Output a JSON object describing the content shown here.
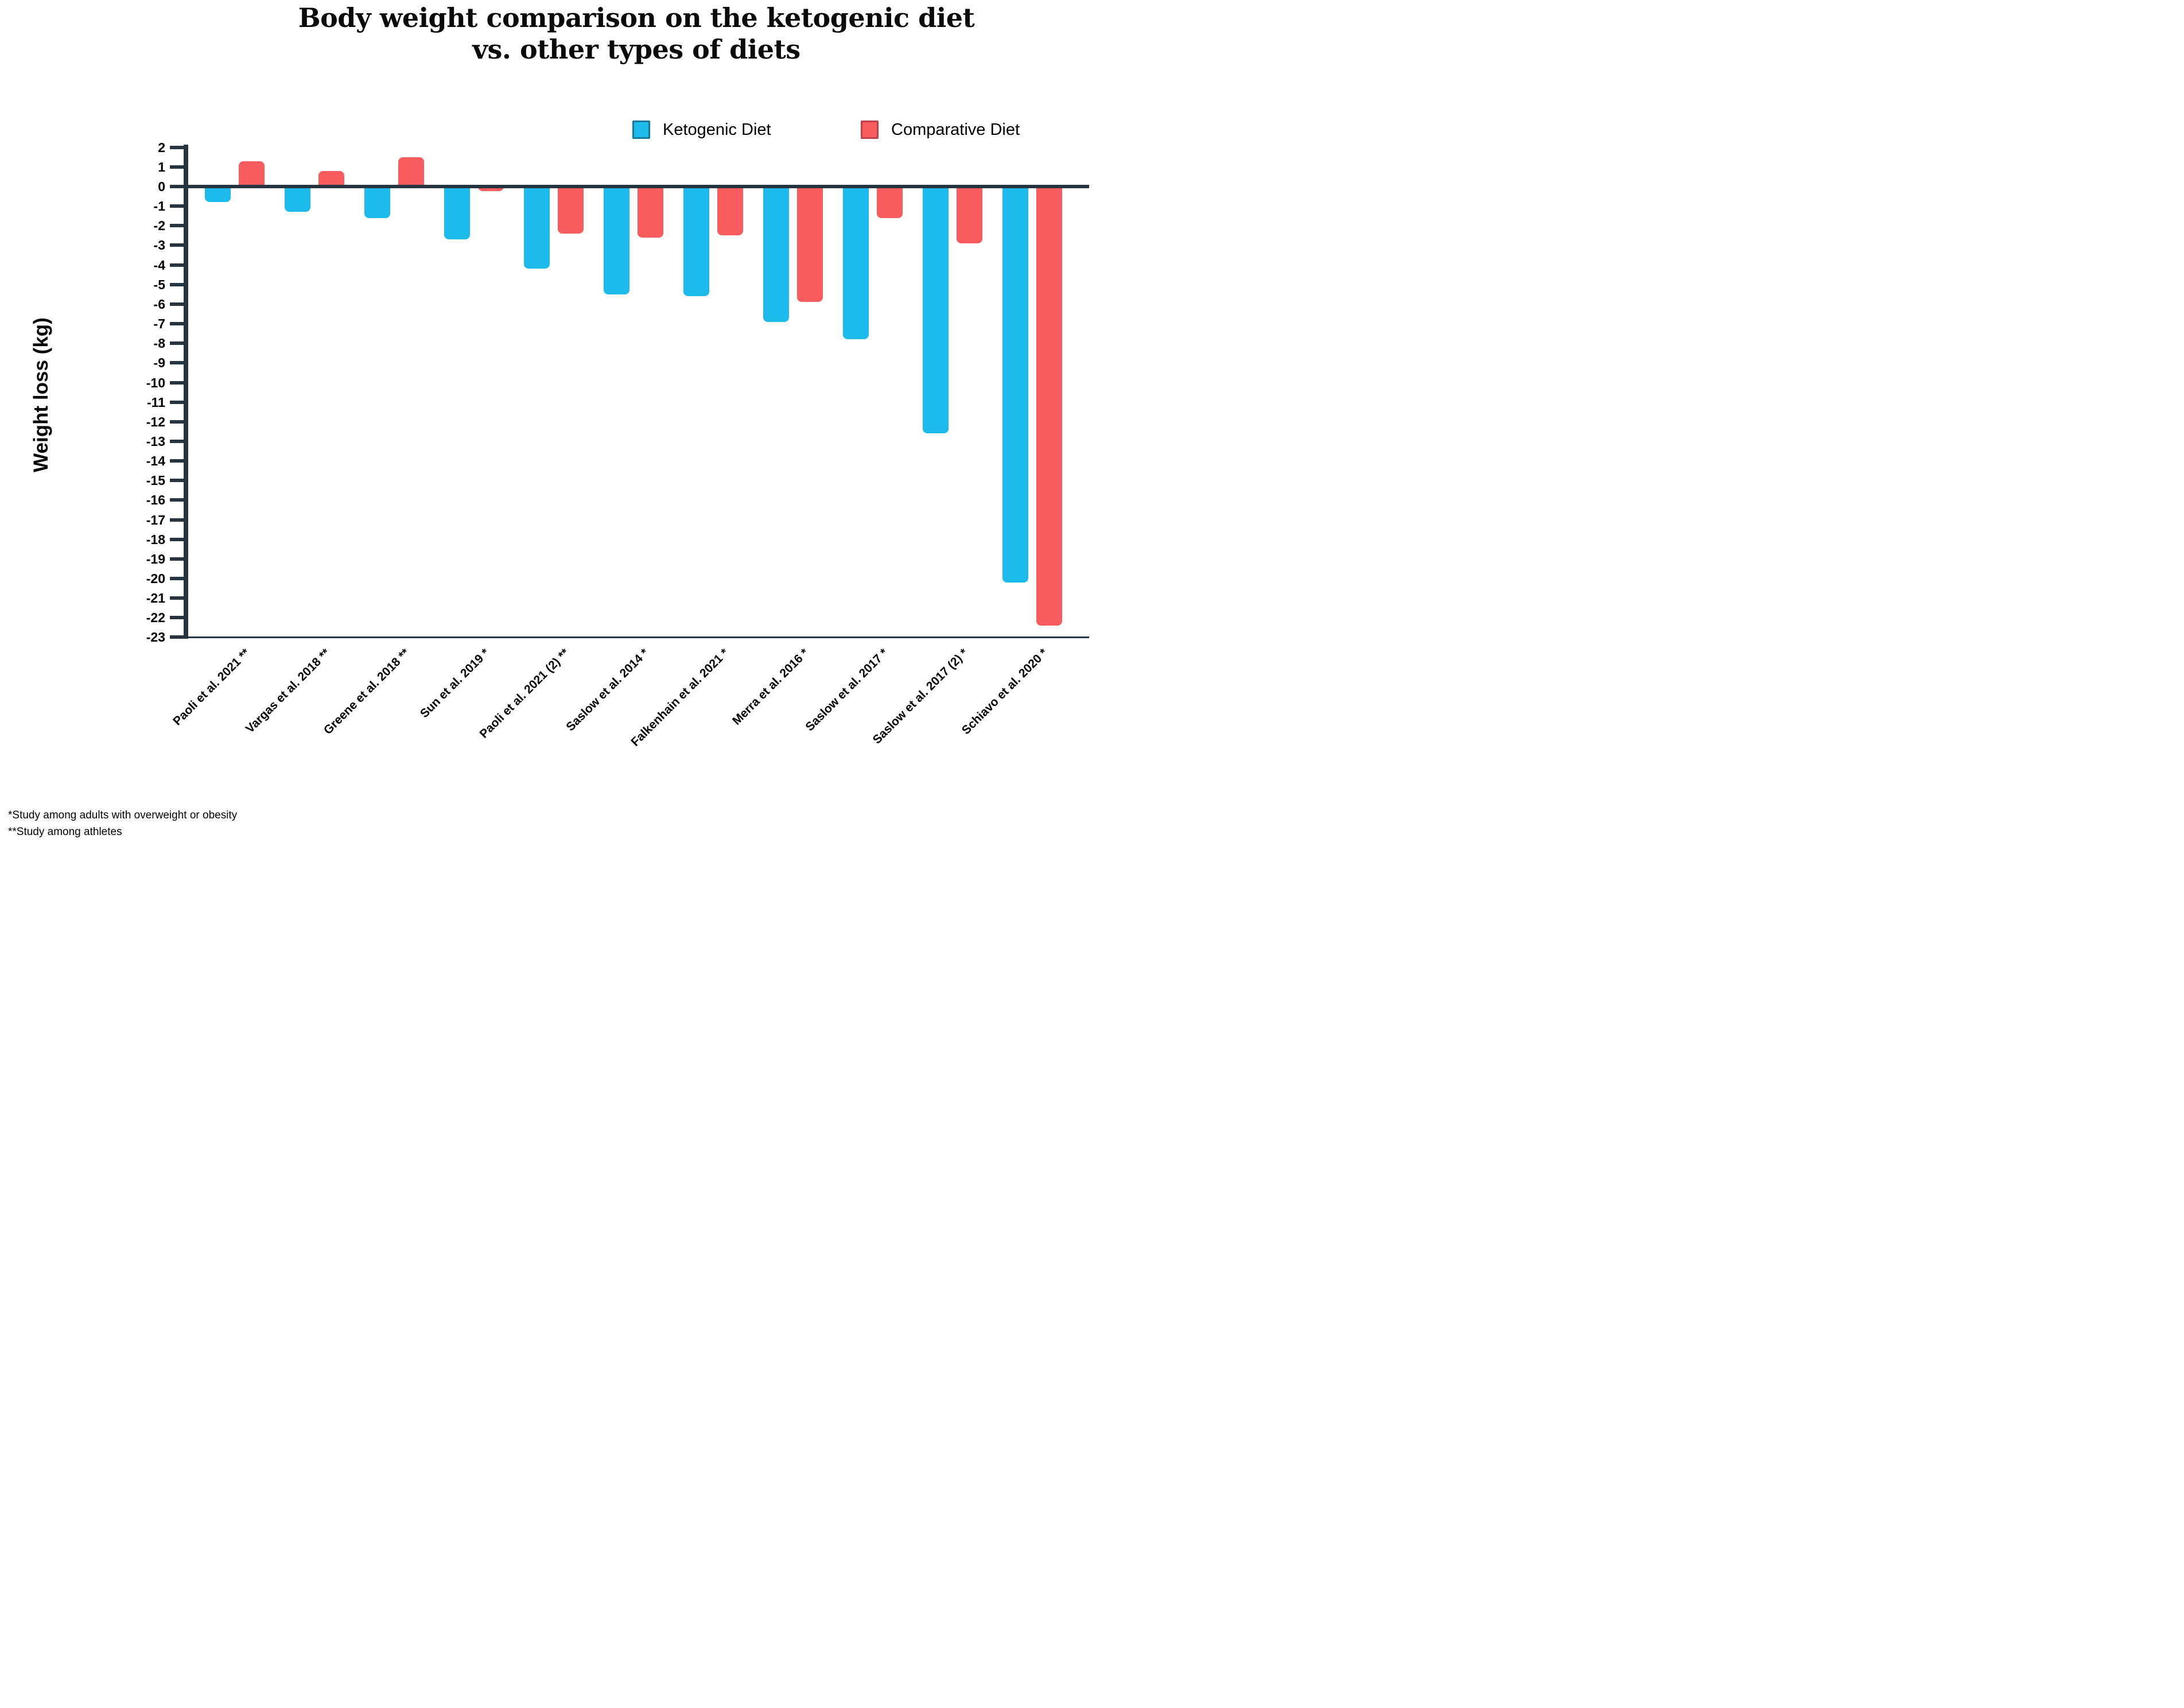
{
  "title": {
    "line1": "Body weight comparison on the ketogenic diet",
    "line2": "vs. other types of diets"
  },
  "legend": [
    {
      "label": "Ketogenic Diet",
      "color": "#1cbbec",
      "border": "#14789f"
    },
    {
      "label": "Comparative Diet",
      "color": "#f85c5e",
      "border": "#bf4046"
    }
  ],
  "y_axis": {
    "label": "Weight loss (kg)",
    "max": 2,
    "min": -23,
    "tick_step": 1
  },
  "axis_color": "#28343f",
  "footnotes": [
    "*Study among adults with overweight or obesity",
    "**Study among athletes"
  ],
  "chart_data": {
    "type": "bar",
    "title": "Body weight comparison on the ketogenic diet vs. other types of diets",
    "ylabel": "Weight loss (kg)",
    "ylim": [
      -23,
      2
    ],
    "grid": false,
    "legend_position": "top-right",
    "categories": [
      "Paoli et al. 2021 **",
      "Vargas et al. 2018 **",
      "Greene et al. 2018 **",
      "Sun et al. 2019 *",
      "Paoli et al. 2021 (2) **",
      "Saslow et al. 2014 *",
      "Falkenhain et al. 2021 *",
      "Merra et al. 2016 *",
      "Saslow et al. 2017 *",
      "Saslow et al. 2017 (2) *",
      "Schiavo et al. 2020 *"
    ],
    "series": [
      {
        "name": "Ketogenic Diet",
        "color": "#1cbbec",
        "values": [
          -0.8,
          -1.3,
          -1.6,
          -2.7,
          -4.2,
          -5.5,
          -5.6,
          -6.9,
          -7.8,
          -12.6,
          -20.2
        ]
      },
      {
        "name": "Comparative Diet",
        "color": "#f85c5e",
        "values": [
          1.3,
          0.8,
          1.5,
          -0.2,
          -2.4,
          -2.6,
          -2.5,
          -5.9,
          -1.6,
          -2.9,
          -22.4
        ]
      }
    ]
  }
}
